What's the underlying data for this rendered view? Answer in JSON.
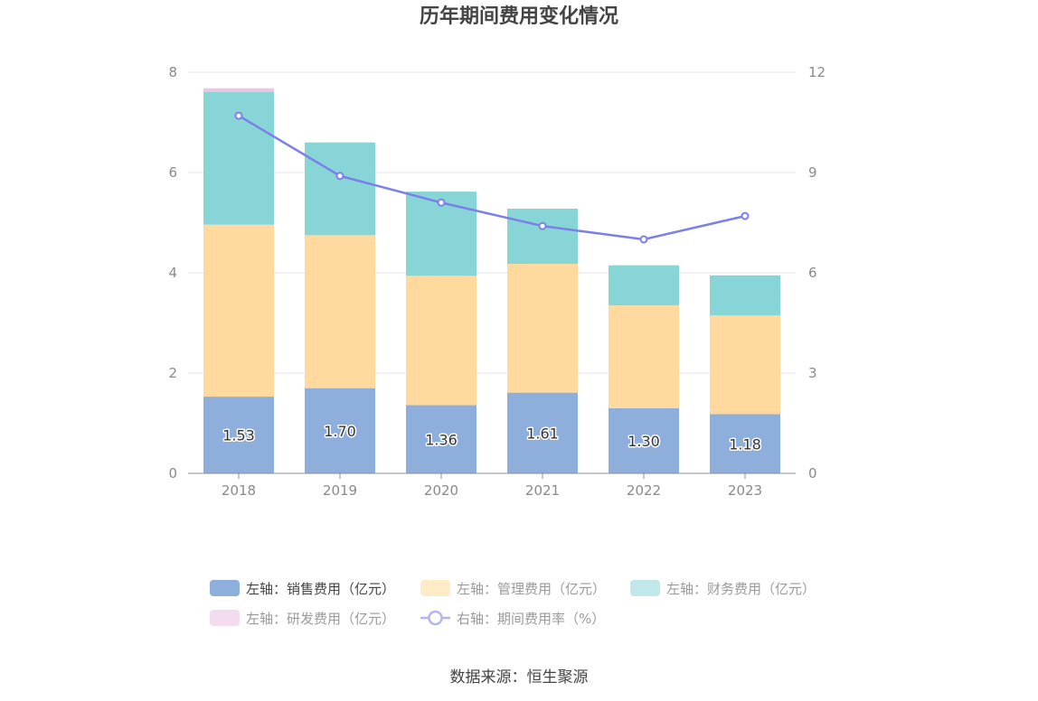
{
  "chart_data": {
    "type": "bar",
    "stacked": true,
    "title": "历年期间费用变化情况",
    "categories": [
      "2018",
      "2019",
      "2020",
      "2021",
      "2022",
      "2023"
    ],
    "series": [
      {
        "name": "左轴：销售费用（亿元）",
        "axis": "left",
        "type": "bar",
        "color": "#8eaedb",
        "values": [
          1.53,
          1.7,
          1.36,
          1.61,
          1.3,
          1.18
        ],
        "show_labels": true
      },
      {
        "name": "左轴：管理费用（亿元）",
        "axis": "left",
        "type": "bar",
        "color": "#ffd99e",
        "values": [
          3.43,
          3.05,
          2.58,
          2.57,
          2.05,
          1.97
        ]
      },
      {
        "name": "左轴：财务费用（亿元）",
        "axis": "left",
        "type": "bar",
        "color": "#88d5d8",
        "values": [
          2.65,
          1.85,
          1.68,
          1.1,
          0.8,
          0.8
        ]
      },
      {
        "name": "左轴：研发费用（亿元）",
        "axis": "left",
        "type": "bar",
        "color": "#e8c6e3",
        "values": [
          0.07,
          0,
          0,
          0,
          0,
          0
        ]
      },
      {
        "name": "右轴：期间费用率（%）",
        "axis": "right",
        "type": "line",
        "color": "#7b7fe8",
        "values": [
          10.7,
          8.9,
          8.1,
          7.4,
          7.0,
          7.7
        ]
      }
    ],
    "y_left": {
      "min": 0,
      "max": 8,
      "ticks": [
        "0",
        "2",
        "4",
        "6",
        "8"
      ]
    },
    "y_right": {
      "min": 0,
      "max": 12,
      "ticks": [
        "0",
        "3",
        "6",
        "9",
        "12"
      ]
    },
    "grid": true,
    "legend_position": "bottom",
    "source": "数据来源：恒生聚源"
  }
}
